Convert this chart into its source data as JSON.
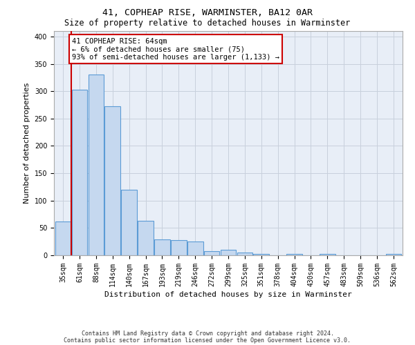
{
  "title1": "41, COPHEAP RISE, WARMINSTER, BA12 0AR",
  "title2": "Size of property relative to detached houses in Warminster",
  "xlabel": "Distribution of detached houses by size in Warminster",
  "ylabel": "Number of detached properties",
  "categories": [
    "35sqm",
    "61sqm",
    "88sqm",
    "114sqm",
    "140sqm",
    "167sqm",
    "193sqm",
    "219sqm",
    "246sqm",
    "272sqm",
    "299sqm",
    "325sqm",
    "351sqm",
    "378sqm",
    "404sqm",
    "430sqm",
    "457sqm",
    "483sqm",
    "509sqm",
    "536sqm",
    "562sqm"
  ],
  "bar_heights": [
    62,
    303,
    330,
    272,
    120,
    63,
    29,
    28,
    25,
    7,
    10,
    5,
    2,
    0,
    2,
    0,
    2,
    0,
    0,
    0,
    2
  ],
  "bar_color": "#c5d8ef",
  "bar_edge_color": "#5b9bd5",
  "vline_x": 0.5,
  "vline_color": "#cc0000",
  "annotation_text": "41 COPHEAP RISE: 64sqm\n← 6% of detached houses are smaller (75)\n93% of semi-detached houses are larger (1,133) →",
  "annotation_box_color": "#ffffff",
  "annotation_box_edge": "#cc0000",
  "ylim": [
    0,
    410
  ],
  "yticks": [
    0,
    50,
    100,
    150,
    200,
    250,
    300,
    350,
    400
  ],
  "footer1": "Contains HM Land Registry data © Crown copyright and database right 2024.",
  "footer2": "Contains public sector information licensed under the Open Government Licence v3.0.",
  "bg_color": "#ffffff",
  "plot_bg_color": "#e8eef7",
  "grid_color": "#c8d0dc",
  "title1_fontsize": 9.5,
  "title2_fontsize": 8.5,
  "tick_fontsize": 7,
  "ylabel_fontsize": 8,
  "xlabel_fontsize": 8,
  "annot_fontsize": 7.5,
  "footer_fontsize": 6
}
